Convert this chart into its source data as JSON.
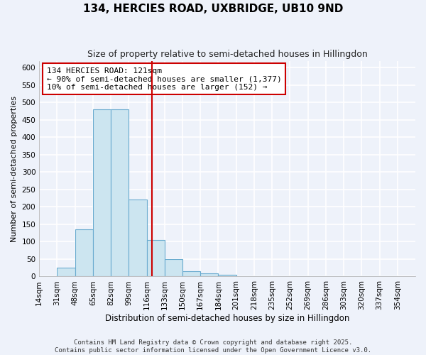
{
  "title": "134, HERCIES ROAD, UXBRIDGE, UB10 9ND",
  "subtitle": "Size of property relative to semi-detached houses in Hillingdon",
  "xlabel": "Distribution of semi-detached houses by size in Hillingdon",
  "ylabel": "Number of semi-detached properties",
  "bin_labels": [
    "14sqm",
    "31sqm",
    "48sqm",
    "65sqm",
    "82sqm",
    "99sqm",
    "116sqm",
    "133sqm",
    "150sqm",
    "167sqm",
    "184sqm",
    "201sqm",
    "218sqm",
    "235sqm",
    "252sqm",
    "269sqm",
    "286sqm",
    "303sqm",
    "320sqm",
    "337sqm",
    "354sqm"
  ],
  "bin_edges": [
    14,
    31,
    48,
    65,
    82,
    99,
    116,
    133,
    150,
    167,
    184,
    201,
    218,
    235,
    252,
    269,
    286,
    303,
    320,
    337,
    354
  ],
  "bar_heights": [
    0,
    25,
    135,
    480,
    480,
    222,
    105,
    50,
    15,
    10,
    5,
    0,
    0,
    0,
    0,
    0,
    0,
    0,
    0,
    0
  ],
  "bar_color": "#cce5f0",
  "bar_edge_color": "#6aabcf",
  "vline_x": 121,
  "vline_color": "#cc0000",
  "annotation_line1": "134 HERCIES ROAD: 121sqm",
  "annotation_line2": "← 90% of semi-detached houses are smaller (1,377)",
  "annotation_line3": "10% of semi-detached houses are larger (152) →",
  "annotation_box_color": "white",
  "annotation_box_edge": "#cc0000",
  "ylim": [
    0,
    620
  ],
  "yticks": [
    0,
    50,
    100,
    150,
    200,
    250,
    300,
    350,
    400,
    450,
    500,
    550,
    600
  ],
  "footer_line1": "Contains HM Land Registry data © Crown copyright and database right 2025.",
  "footer_line2": "Contains public sector information licensed under the Open Government Licence v3.0.",
  "background_color": "#eef2fa",
  "grid_color": "#ffffff",
  "title_fontsize": 11,
  "subtitle_fontsize": 9,
  "ylabel_fontsize": 8,
  "xlabel_fontsize": 8.5,
  "tick_fontsize": 7.5,
  "annot_fontsize": 8,
  "footer_fontsize": 6.5
}
